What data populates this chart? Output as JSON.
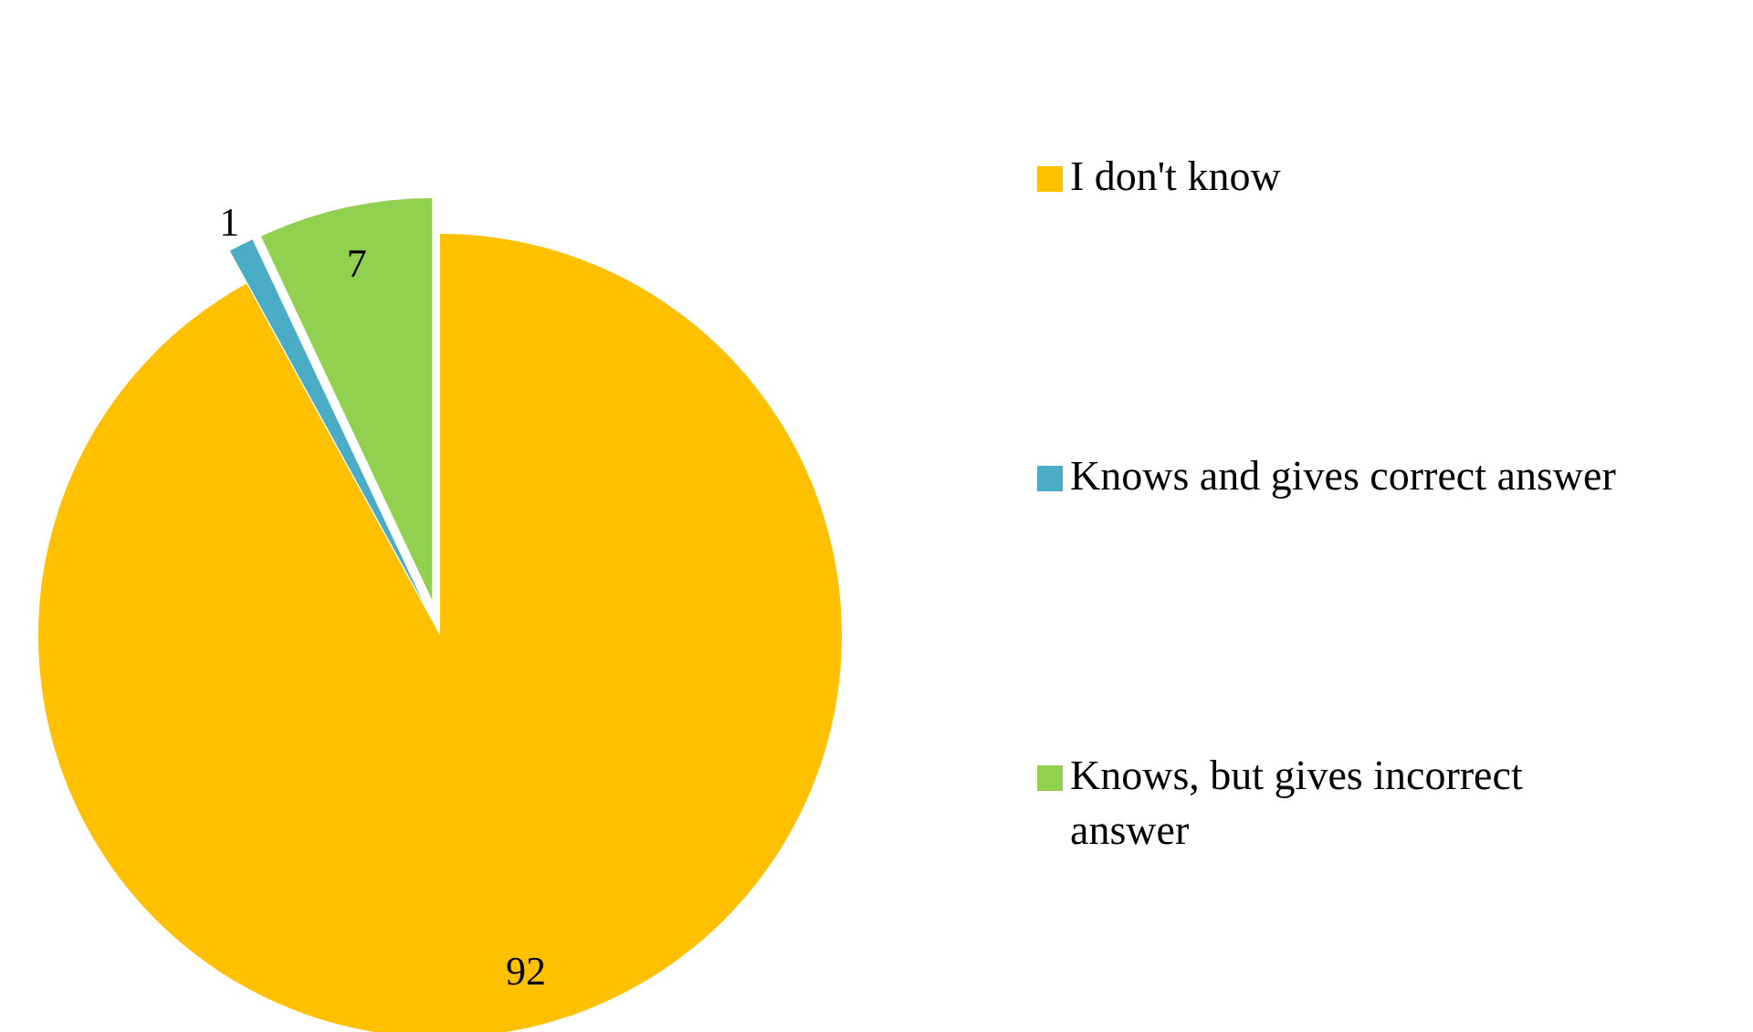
{
  "chart_data": {
    "type": "pie",
    "categories": [
      "I don't know",
      "Knows and gives correct answer",
      "Knows, but gives incorrect answer"
    ],
    "values": [
      92,
      1,
      7
    ],
    "colors": [
      "#ffc000",
      "#4bacc6",
      "#92d050"
    ],
    "data_labels": true,
    "legend": "right"
  }
}
